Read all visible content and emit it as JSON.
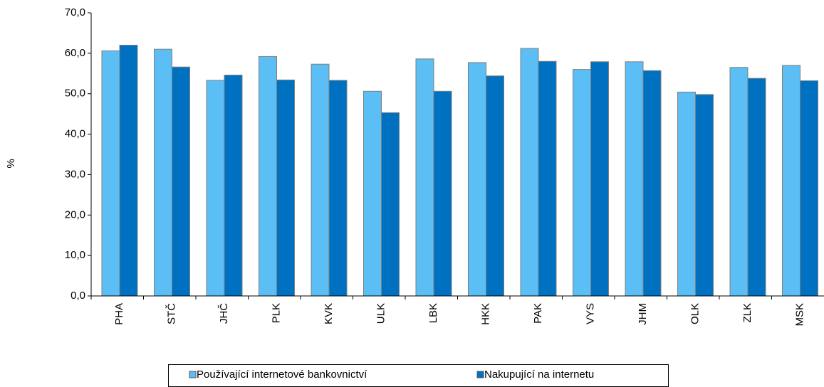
{
  "chart_data": {
    "type": "bar",
    "y_label": "%",
    "categories": [
      "PHA",
      "STČ",
      "JHČ",
      "PLK",
      "KVK",
      "ULK",
      "LBK",
      "HKK",
      "PAK",
      "VYS",
      "JHM",
      "OLK",
      "ZLK",
      "MSK"
    ],
    "series": [
      {
        "name": "Používající internetové bankovnictví",
        "color": "#5bbef5",
        "values": [
          60.6,
          61.0,
          53.3,
          59.2,
          57.3,
          50.6,
          58.6,
          57.7,
          61.2,
          56.0,
          57.9,
          50.4,
          56.5,
          57.0
        ]
      },
      {
        "name": "Nakupující na internetu",
        "color": "#0070c0",
        "values": [
          62.0,
          56.6,
          54.6,
          53.4,
          53.3,
          45.3,
          50.6,
          54.4,
          58.0,
          57.9,
          55.7,
          49.8,
          53.8,
          53.2
        ]
      }
    ],
    "ylim": [
      0,
      70
    ],
    "yticks": [
      {
        "value": 0,
        "label": "0,0"
      },
      {
        "value": 10,
        "label": "10,0"
      },
      {
        "value": 20,
        "label": "20,0"
      },
      {
        "value": 30,
        "label": "30,0"
      },
      {
        "value": 40,
        "label": "40,0"
      },
      {
        "value": 50,
        "label": "50,0"
      },
      {
        "value": 60,
        "label": "60,0"
      },
      {
        "value": 70,
        "label": "70,0"
      }
    ],
    "legend": "bottom"
  }
}
